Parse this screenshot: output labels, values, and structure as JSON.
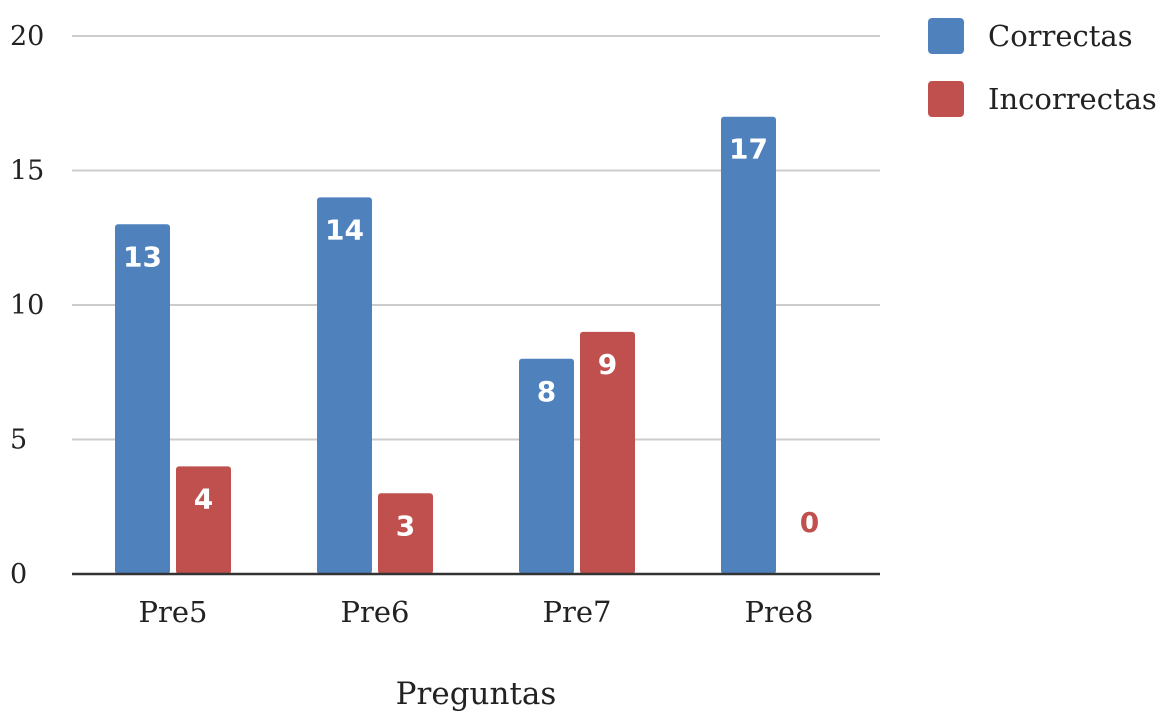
{
  "chart_data": {
    "type": "bar",
    "title": "",
    "xlabel": "Preguntas",
    "ylabel": "",
    "categories": [
      "Pre5",
      "Pre6",
      "Pre7",
      "Pre8"
    ],
    "series": [
      {
        "name": "Correctas",
        "values": [
          13,
          14,
          8,
          17
        ],
        "color": "#4f81bd"
      },
      {
        "name": "Incorrectas",
        "values": [
          4,
          3,
          9,
          0
        ],
        "color": "#c0504d"
      }
    ],
    "ylim": [
      0,
      20
    ],
    "yticks": [
      {
        "value": 0,
        "label": "0"
      },
      {
        "value": 5,
        "label": "5"
      },
      {
        "value": 10,
        "label": "10"
      },
      {
        "value": 15,
        "label": "15"
      },
      {
        "value": 20,
        "label": "20"
      }
    ],
    "grid": true,
    "legend_position": "top-right",
    "data_labels": true
  }
}
